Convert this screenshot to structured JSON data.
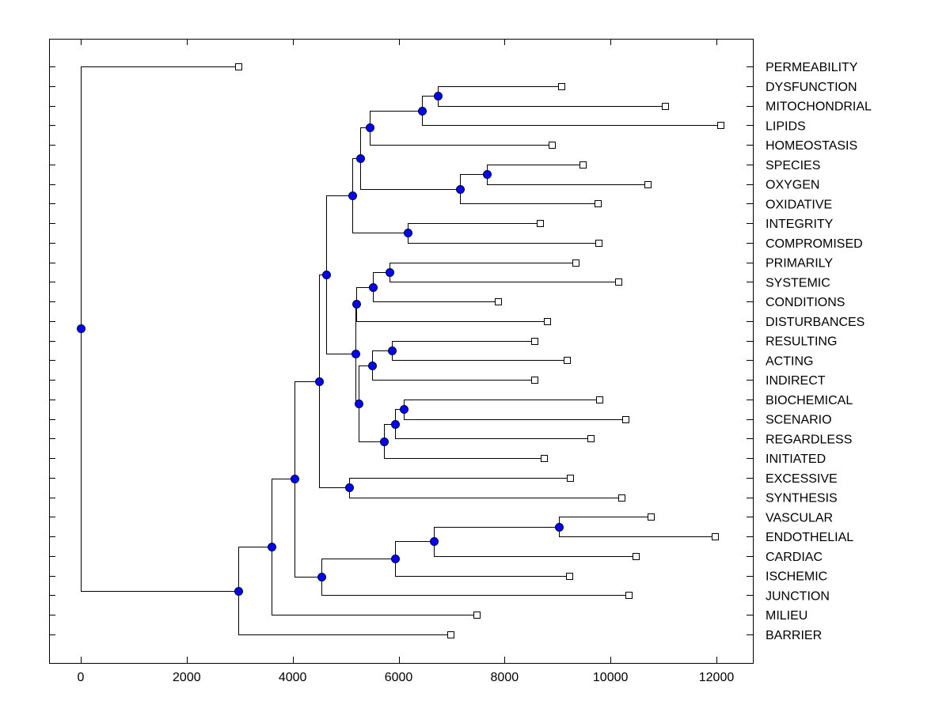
{
  "chart_data": {
    "type": "dendrogram",
    "title": "",
    "xlabel": "",
    "ylabel": "",
    "xlim": [
      -600,
      12680
    ],
    "x_ticks": [
      0,
      2000,
      4000,
      6000,
      8000,
      10000,
      12000
    ],
    "x_tick_labels": [
      "0",
      "2000",
      "4000",
      "6000",
      "8000",
      "10000",
      "12000"
    ],
    "grid": false,
    "orientation": "left-to-right",
    "label_position": "right",
    "colors": {
      "node_fill": "#0000ff",
      "node_stroke": "#000033",
      "leaf_fill": "#ffffff",
      "line": "#000000"
    },
    "leaves": [
      {
        "label": "PERMEABILITY",
        "value": 2975
      },
      {
        "label": "DYSFUNCTION",
        "value": 9070
      },
      {
        "label": "MITOCHONDRIAL",
        "value": 11025
      },
      {
        "label": "LIPIDS",
        "value": 12070
      },
      {
        "label": "HOMEOSTASIS",
        "value": 8890
      },
      {
        "label": "SPECIES",
        "value": 9470
      },
      {
        "label": "OXYGEN",
        "value": 10700
      },
      {
        "label": "OXIDATIVE",
        "value": 9755
      },
      {
        "label": "INTEGRITY",
        "value": 8665
      },
      {
        "label": "COMPROMISED",
        "value": 9770
      },
      {
        "label": "PRIMARILY",
        "value": 9335
      },
      {
        "label": "SYSTEMIC",
        "value": 10145
      },
      {
        "label": "CONDITIONS",
        "value": 7870
      },
      {
        "label": "DISTURBANCES",
        "value": 8800
      },
      {
        "label": "RESULTING",
        "value": 8560
      },
      {
        "label": "ACTING",
        "value": 9170
      },
      {
        "label": "INDIRECT",
        "value": 8560
      },
      {
        "label": "BIOCHEMICAL",
        "value": 9785
      },
      {
        "label": "SCENARIO",
        "value": 10280
      },
      {
        "label": "REGARDLESS",
        "value": 9620
      },
      {
        "label": "INITIATED",
        "value": 8740
      },
      {
        "label": "EXCESSIVE",
        "value": 9230
      },
      {
        "label": "SYNTHESIS",
        "value": 10205
      },
      {
        "label": "VASCULAR",
        "value": 10755
      },
      {
        "label": "ENDOTHELIAL",
        "value": 11965
      },
      {
        "label": "CARDIAC",
        "value": 10470
      },
      {
        "label": "ISCHEMIC",
        "value": 9215
      },
      {
        "label": "JUNCTION",
        "value": 10335
      },
      {
        "label": "MILIEU",
        "value": 7470
      },
      {
        "label": "BARRIER",
        "value": 6975
      }
    ],
    "nodes": [
      {
        "id": "n_dm",
        "value": 6740,
        "children": [
          "L1",
          "L2"
        ]
      },
      {
        "id": "n_dml",
        "value": 6440,
        "children": [
          "n_dm",
          "L3"
        ]
      },
      {
        "id": "n_h",
        "value": 5455,
        "children": [
          "n_dml",
          "L4"
        ]
      },
      {
        "id": "n_so",
        "value": 7665,
        "children": [
          "L5",
          "L6"
        ]
      },
      {
        "id": "n_soo",
        "value": 7155,
        "children": [
          "n_so",
          "L7"
        ]
      },
      {
        "id": "n_top1",
        "value": 5275,
        "children": [
          "n_h",
          "n_soo"
        ]
      },
      {
        "id": "n_ic",
        "value": 6170,
        "children": [
          "L8",
          "L9"
        ]
      },
      {
        "id": "n_top2",
        "value": 5125,
        "children": [
          "n_top1",
          "n_ic"
        ]
      },
      {
        "id": "n_ps",
        "value": 5825,
        "children": [
          "L10",
          "L11"
        ]
      },
      {
        "id": "n_psc",
        "value": 5510,
        "children": [
          "n_ps",
          "L12"
        ]
      },
      {
        "id": "n_psd",
        "value": 5200,
        "children": [
          "n_psc",
          "L13"
        ]
      },
      {
        "id": "n_ra",
        "value": 5870,
        "children": [
          "L14",
          "L15"
        ]
      },
      {
        "id": "n_rai",
        "value": 5500,
        "children": [
          "n_ra",
          "L16"
        ]
      },
      {
        "id": "n_bs",
        "value": 6095,
        "children": [
          "L17",
          "L18"
        ]
      },
      {
        "id": "n_bsr",
        "value": 5930,
        "children": [
          "n_bs",
          "L19"
        ]
      },
      {
        "id": "n_bsri",
        "value": 5720,
        "children": [
          "n_bsr",
          "L20"
        ]
      },
      {
        "id": "n_mid2",
        "value": 5245,
        "children": [
          "n_rai",
          "n_bsri"
        ]
      },
      {
        "id": "n_mid",
        "value": 5185,
        "children": [
          "n_psd",
          "n_mid2"
        ]
      },
      {
        "id": "n_upper",
        "value": 4630,
        "children": [
          "n_top2",
          "n_mid"
        ]
      },
      {
        "id": "n_es",
        "value": 5065,
        "children": [
          "L21",
          "L22"
        ]
      },
      {
        "id": "n_a",
        "value": 4495,
        "children": [
          "n_upper",
          "n_es"
        ]
      },
      {
        "id": "n_ve",
        "value": 9025,
        "children": [
          "L23",
          "L24"
        ]
      },
      {
        "id": "n_vec",
        "value": 6665,
        "children": [
          "n_ve",
          "L25"
        ]
      },
      {
        "id": "n_veci",
        "value": 5930,
        "children": [
          "n_vec",
          "L26"
        ]
      },
      {
        "id": "n_vecij",
        "value": 4540,
        "children": [
          "n_veci",
          "L27"
        ]
      },
      {
        "id": "n_b",
        "value": 4035,
        "children": [
          "n_a",
          "n_vecij"
        ]
      },
      {
        "id": "n_bm",
        "value": 3600,
        "children": [
          "n_b",
          "L28"
        ]
      },
      {
        "id": "n_bmb",
        "value": 2975,
        "children": [
          "n_bm",
          "L29"
        ]
      },
      {
        "id": "root",
        "value": 0,
        "children": [
          "L0",
          "n_bmb"
        ]
      }
    ]
  }
}
